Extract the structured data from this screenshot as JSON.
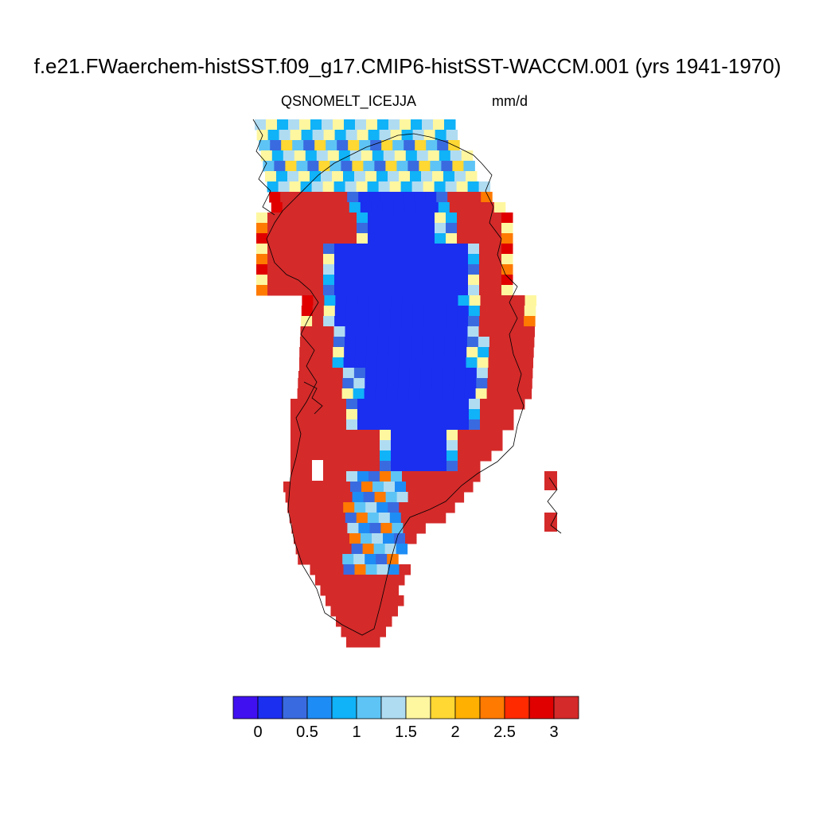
{
  "title": "f.e21.FWaerchem-histSST.f09_g17.CMIP6-histSST-WACCM.001 (yrs 1941-1970)",
  "variable": "QSNOMELT_ICE",
  "season": "JJA",
  "units": "mm/d",
  "colorbar": {
    "colors": [
      "#4010f0",
      "#1a2ff0",
      "#3a6ae0",
      "#1e8cf5",
      "#10b2f8",
      "#5ec4f5",
      "#b0dcf2",
      "#fff7a0",
      "#ffd833",
      "#ffb000",
      "#ff7a00",
      "#ff2a00",
      "#e00000",
      "#d42a2a"
    ],
    "ticks": [
      "0",
      "0.5",
      "1",
      "1.5",
      "2",
      "2.5",
      "3"
    ]
  },
  "map_colors": {
    "ocean": "#ffffff",
    "coastline": "#000000",
    "interior_value_color": "#1a2ff0",
    "margin_value_color": "#d42a2a"
  }
}
